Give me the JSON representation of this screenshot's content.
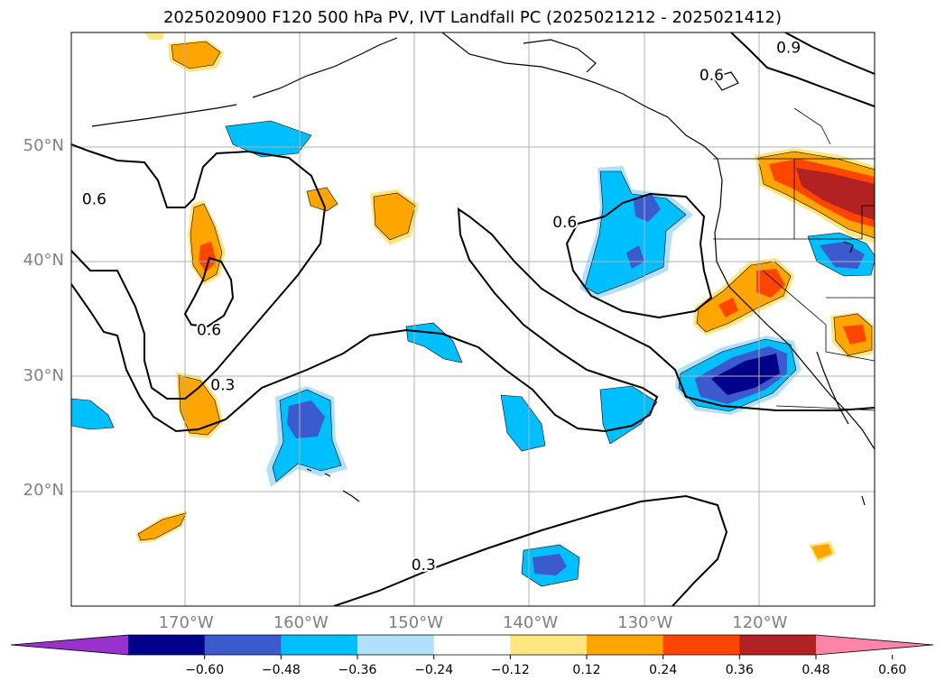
{
  "title": "2025020900 F120 500 hPa PV, IVT Landfall PC (2025021212 - 2025021412)",
  "map": {
    "projection": "PlateCarree",
    "extent": {
      "lon_min": -180,
      "lon_max": -110,
      "lat_min": 10,
      "lat_max": 60
    },
    "gridlines": true,
    "lat_labels": [
      {
        "lat": 50,
        "text": "50°N"
      },
      {
        "lat": 40,
        "text": "40°N"
      },
      {
        "lat": 30,
        "text": "30°N"
      },
      {
        "lat": 20,
        "text": "20°N"
      }
    ],
    "lon_labels": [
      {
        "lon": -170,
        "text": "170°W"
      },
      {
        "lon": -160,
        "text": "160°W"
      },
      {
        "lon": -150,
        "text": "150°W"
      },
      {
        "lon": -140,
        "text": "140°W"
      },
      {
        "lon": -130,
        "text": "130°W"
      },
      {
        "lon": -120,
        "text": "120°W"
      }
    ],
    "contour_labels": [
      {
        "text": "0.6",
        "lon": -178,
        "lat": 45.5
      },
      {
        "text": "0.6",
        "lon": -168,
        "lat": 34.1
      },
      {
        "text": "0.3",
        "lon": -166.8,
        "lat": 29.3
      },
      {
        "text": "0.6",
        "lon": -137,
        "lat": 43.5
      },
      {
        "text": "0.6",
        "lon": -124.2,
        "lat": 56.3
      },
      {
        "text": "0.9",
        "lon": -117.5,
        "lat": 58.7
      },
      {
        "text": "0.3",
        "lon": -149.3,
        "lat": 13.6
      }
    ],
    "colors": {
      "coast": "#000000",
      "grid": "#b0b0b0",
      "contour": "#000000"
    }
  },
  "colorbar": {
    "levels": [
      "−0.60",
      "−0.48",
      "−0.36",
      "−0.24",
      "−0.12",
      "0.12",
      "0.24",
      "0.36",
      "0.48",
      "0.60"
    ],
    "colors": [
      "#9932cc",
      "#00008b",
      "#3a5acd",
      "#00bfff",
      "#b0e0fa",
      "#ffffff",
      "#ffe680",
      "#ffa500",
      "#ff4500",
      "#b22222",
      "#ff85a8"
    ],
    "extend": "both"
  }
}
